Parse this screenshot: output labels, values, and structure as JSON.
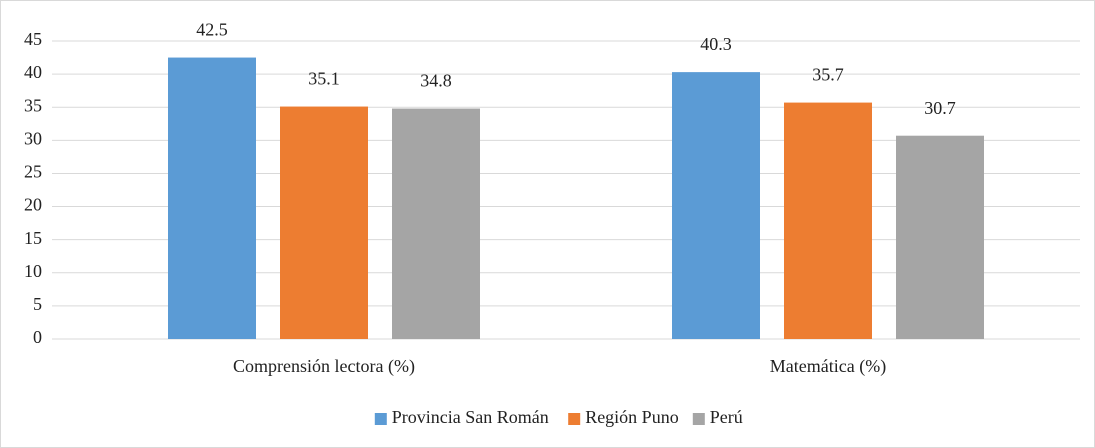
{
  "chart_data": {
    "type": "bar",
    "categories": [
      "Comprensión lectora (%)",
      "Matemática (%)"
    ],
    "series": [
      {
        "name": "Provincia San Román",
        "color": "#5b9bd5",
        "values": [
          42.5,
          40.3
        ]
      },
      {
        "name": "Región Puno",
        "color": "#ed7d31",
        "values": [
          35.1,
          35.7
        ]
      },
      {
        "name": "Perú",
        "color": "#a5a5a5",
        "values": [
          34.8,
          30.7
        ]
      }
    ],
    "ylim": [
      0,
      45
    ],
    "yticks": [
      0,
      5,
      10,
      15,
      20,
      25,
      30,
      35,
      40,
      45
    ],
    "grid": true,
    "legend": "bottom"
  }
}
